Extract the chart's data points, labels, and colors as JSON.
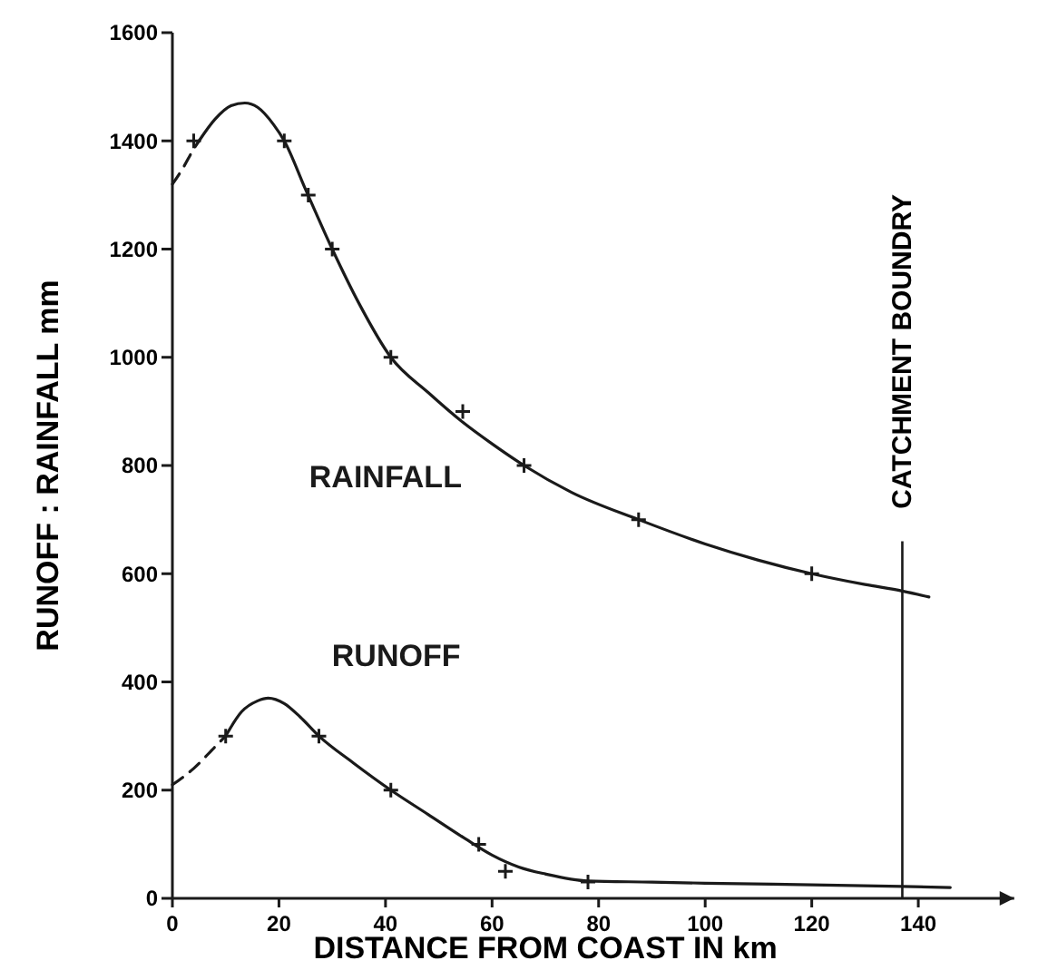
{
  "chart_data": {
    "type": "line",
    "xlabel": "DISTANCE FROM COAST IN km",
    "ylabel": "RUNOFF : RAINFALL mm",
    "xlim": [
      0,
      158
    ],
    "ylim": [
      0,
      1600
    ],
    "xticks": [
      0,
      20,
      40,
      60,
      80,
      100,
      120,
      140
    ],
    "yticks": [
      0,
      200,
      400,
      600,
      800,
      1000,
      1200,
      1400,
      1600
    ],
    "grid": false,
    "series": [
      {
        "line_style": "dashed",
        "marker": "none",
        "color": "#1a1a1a",
        "x": [
          0,
          2,
          4,
          5
        ],
        "values": [
          1320,
          1350,
          1385,
          1400
        ]
      },
      {
        "name": "RAINFALL",
        "line_style": "solid",
        "marker": "none",
        "color": "#1a1a1a",
        "x": [
          5,
          8,
          11,
          13.6,
          16,
          19,
          21,
          25,
          30,
          35,
          41,
          48,
          54.5,
          60,
          66,
          75,
          87.5,
          100,
          110,
          120,
          130,
          137,
          142
        ],
        "values": [
          1400,
          1440,
          1465,
          1470,
          1462,
          1430,
          1400,
          1310,
          1200,
          1100,
          1000,
          935,
          880,
          840,
          800,
          750,
          700,
          655,
          625,
          600,
          580,
          568,
          557
        ]
      },
      {
        "type": "scatter",
        "marker": "cross",
        "color": "#1a1a1a",
        "x": [
          4,
          21,
          25.5,
          30,
          41,
          54.5,
          66,
          87.5,
          120
        ],
        "values": [
          1400,
          1400,
          1300,
          1200,
          1000,
          900,
          800,
          700,
          600
        ]
      },
      {
        "line_style": "dashed",
        "marker": "none",
        "color": "#1a1a1a",
        "x": [
          0,
          4,
          8,
          10
        ],
        "values": [
          210,
          240,
          280,
          300
        ]
      },
      {
        "name": "RUNOFF",
        "line_style": "solid",
        "marker": "none",
        "color": "#1a1a1a",
        "x": [
          10,
          13,
          16,
          18,
          21,
          24,
          27.5,
          34,
          41,
          48,
          55,
          60,
          65,
          70,
          78,
          90,
          100,
          120,
          137,
          146
        ],
        "values": [
          300,
          345,
          365,
          370,
          360,
          335,
          300,
          250,
          200,
          155,
          110,
          80,
          58,
          45,
          32,
          30,
          28,
          25,
          22,
          20
        ]
      },
      {
        "type": "scatter",
        "marker": "cross",
        "color": "#1a1a1a",
        "x": [
          10,
          27.5,
          41,
          57.5,
          62.5,
          78
        ],
        "values": [
          300,
          300,
          200,
          100,
          50,
          30
        ]
      }
    ],
    "ref_lines": [
      {
        "axis": "x",
        "value": 137,
        "label": "CATCHMENT BOUNDRY",
        "color": "#1a1a1a",
        "line_style": "solid"
      }
    ]
  }
}
